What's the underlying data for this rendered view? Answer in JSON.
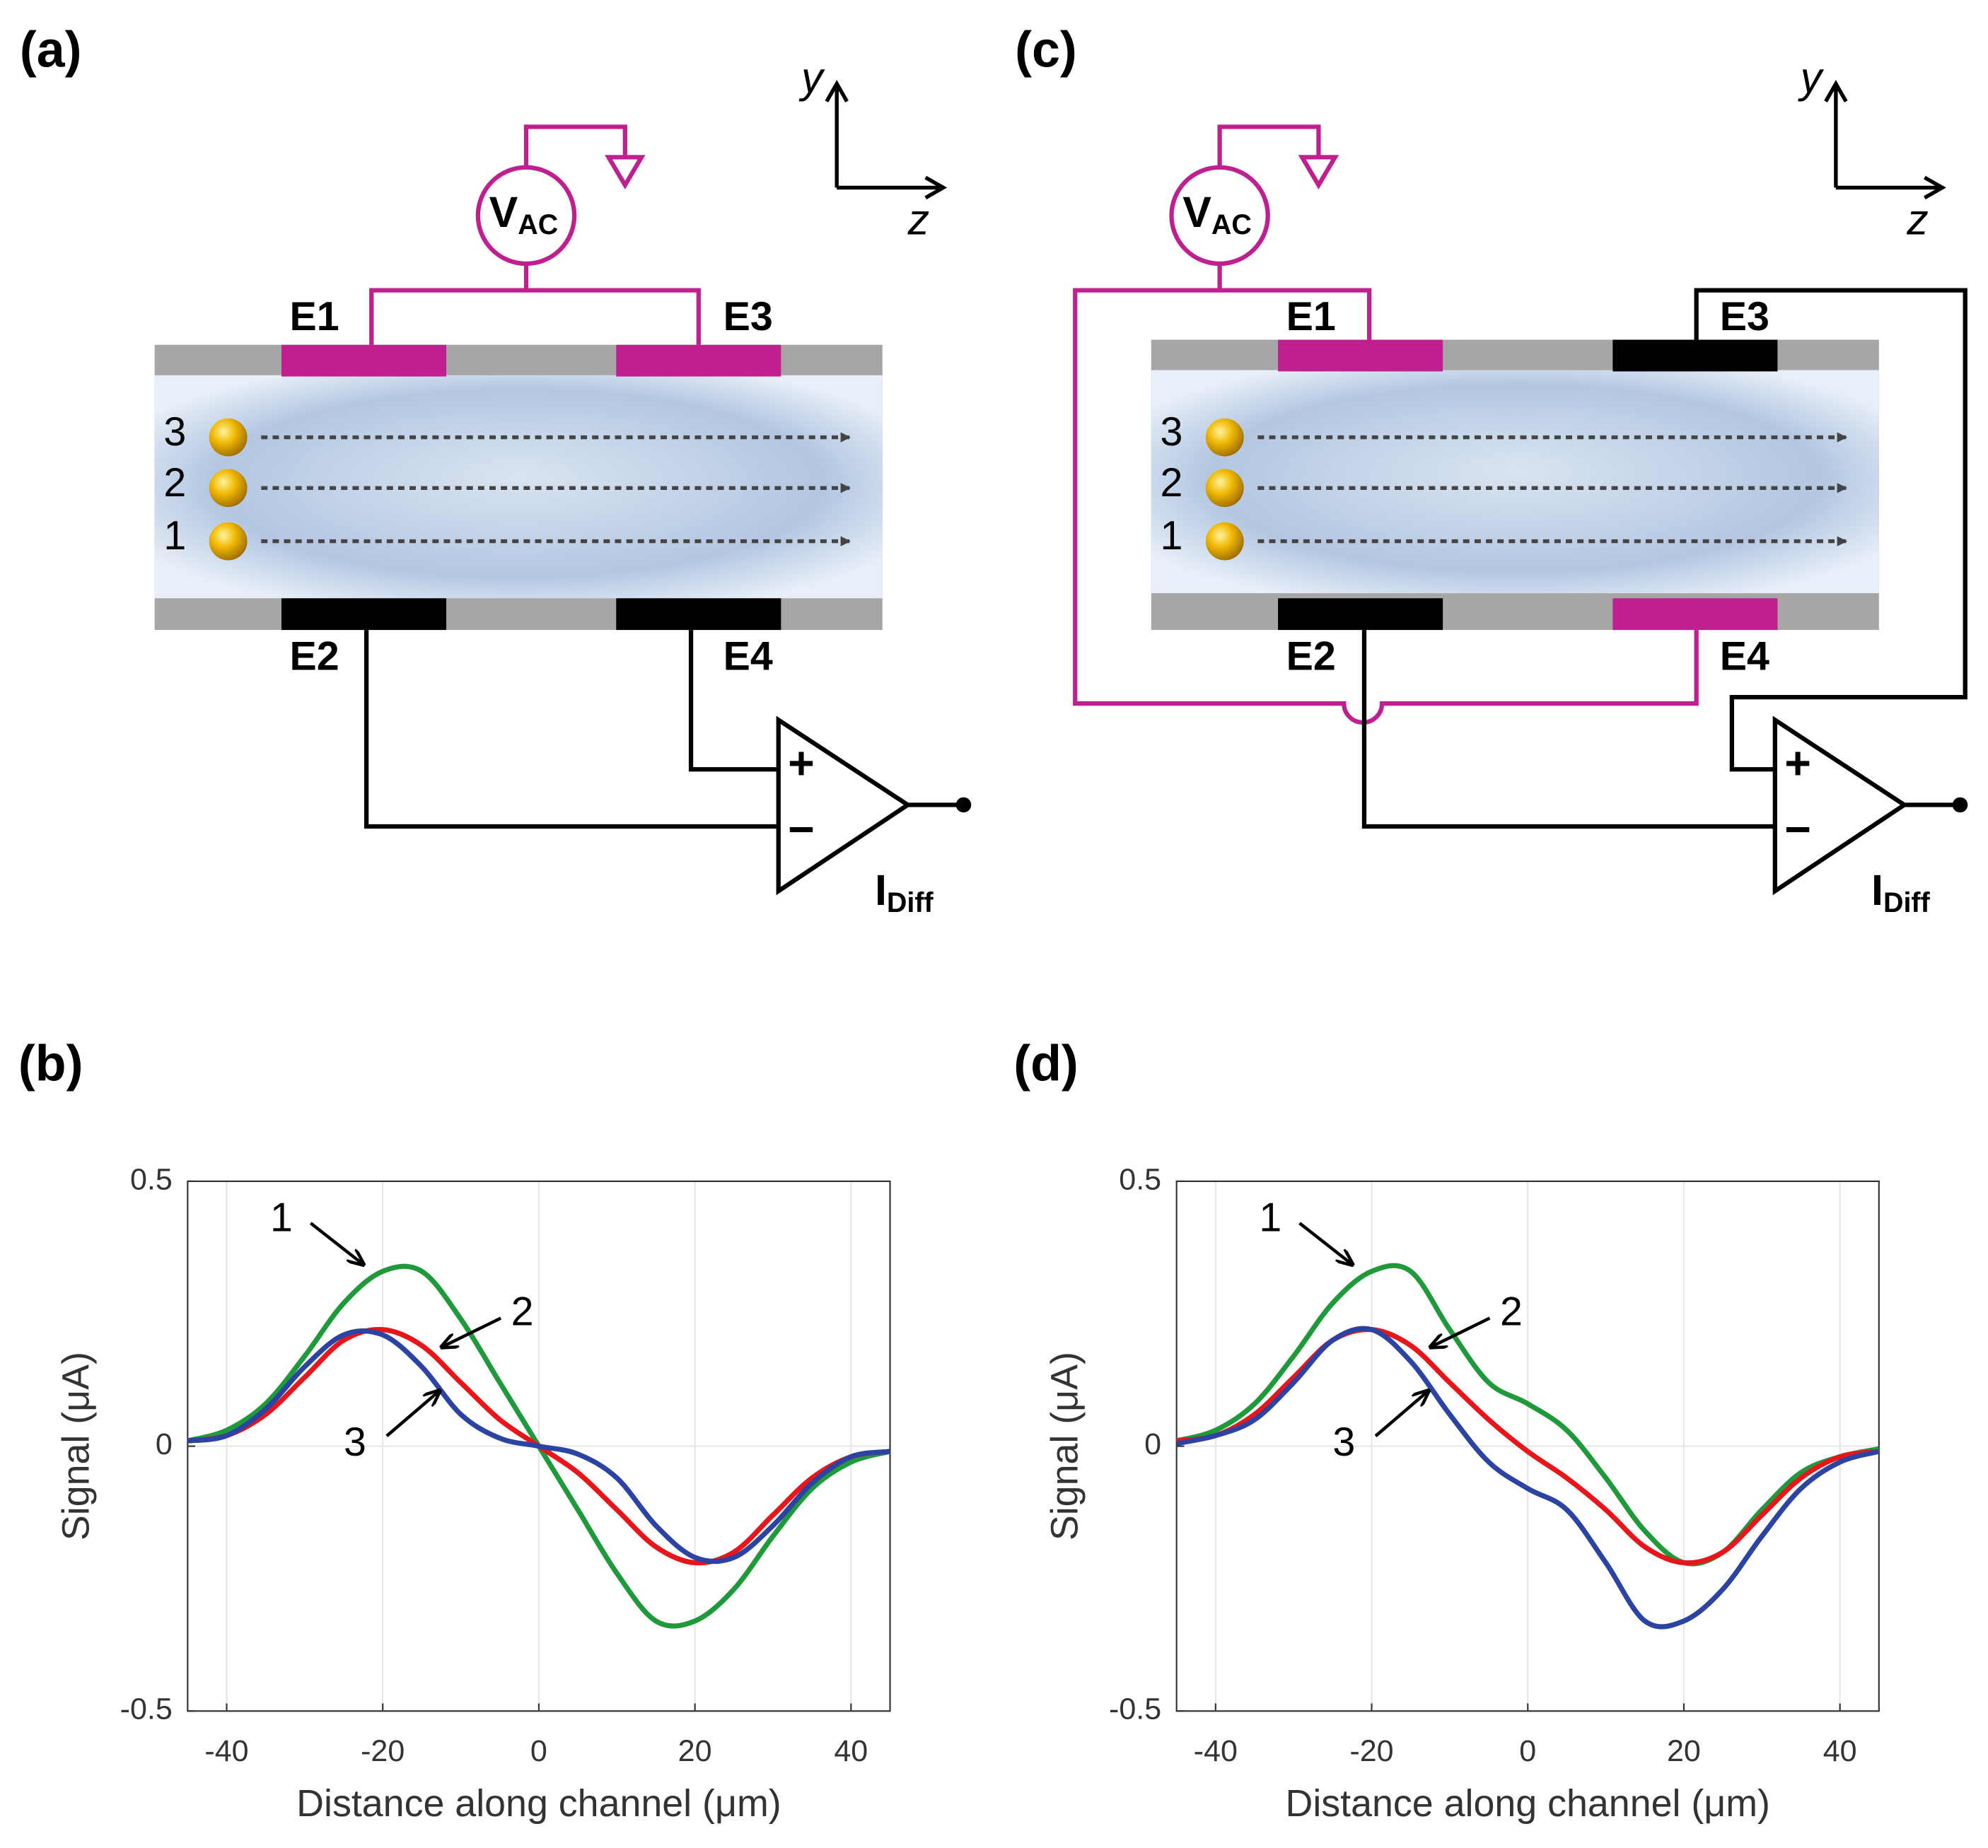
{
  "diagrams": [
    {
      "panel": "(a)",
      "axes": {
        "y": "y",
        "z": "z"
      },
      "source": {
        "main": "V",
        "sub": "AC"
      },
      "electrodes": [
        "E1",
        "E2",
        "E3",
        "E4"
      ],
      "particles": [
        "3",
        "2",
        "1"
      ],
      "amplifier": {
        "plus": "+",
        "minus": "−",
        "output_main": "I",
        "output_sub": "Diff"
      }
    },
    {
      "panel": "(c)",
      "axes": {
        "y": "y",
        "z": "z"
      },
      "source": {
        "main": "V",
        "sub": "AC"
      },
      "electrodes": [
        "E1",
        "E2",
        "E3",
        "E4"
      ],
      "particles": [
        "3",
        "2",
        "1"
      ],
      "amplifier": {
        "plus": "+",
        "minus": "−",
        "output_main": "I",
        "output_sub": "Diff"
      }
    }
  ],
  "chart_data": [
    {
      "type": "line",
      "panel": "(b)",
      "x_label": "Distance along channel (μm)",
      "y_label": "Signal (μA)",
      "x": [
        -45,
        -40,
        -35,
        -30,
        -25,
        -20,
        -15,
        -10,
        -5,
        0,
        5,
        10,
        15,
        20,
        25,
        30,
        35,
        40,
        45
      ],
      "series": [
        {
          "name": "1",
          "color": "#1e9a3a",
          "values": [
            0.01,
            0.03,
            0.08,
            0.17,
            0.27,
            0.33,
            0.33,
            0.24,
            0.12,
            0.0,
            -0.12,
            -0.24,
            -0.33,
            -0.33,
            -0.27,
            -0.17,
            -0.08,
            -0.03,
            -0.01
          ]
        },
        {
          "name": "2",
          "color": "#e8161b",
          "values": [
            0.01,
            0.02,
            0.06,
            0.13,
            0.2,
            0.22,
            0.19,
            0.12,
            0.05,
            0.0,
            -0.05,
            -0.12,
            -0.19,
            -0.22,
            -0.2,
            -0.13,
            -0.06,
            -0.02,
            -0.01
          ]
        },
        {
          "name": "3",
          "color": "#2b44a3",
          "values": [
            0.01,
            0.02,
            0.07,
            0.15,
            0.21,
            0.21,
            0.15,
            0.06,
            0.015,
            0.0,
            -0.015,
            -0.06,
            -0.15,
            -0.21,
            -0.21,
            -0.15,
            -0.07,
            -0.02,
            -0.01
          ]
        }
      ],
      "xlim": [
        -45,
        45
      ],
      "ylim": [
        -0.5,
        0.5
      ],
      "xticks": [
        -40,
        -20,
        0,
        20,
        40
      ],
      "yticks": [
        -0.5,
        0,
        0.5
      ],
      "grid": true
    },
    {
      "type": "line",
      "panel": "(d)",
      "x_label": "Distance along channel (μm)",
      "y_label": "Signal (μA)",
      "x": [
        -45,
        -40,
        -35,
        -30,
        -25,
        -20,
        -15,
        -10,
        -5,
        0,
        5,
        10,
        15,
        20,
        25,
        30,
        35,
        40,
        45
      ],
      "series": [
        {
          "name": "1",
          "color": "#1e9a3a",
          "values": [
            0.01,
            0.03,
            0.08,
            0.17,
            0.27,
            0.33,
            0.33,
            0.22,
            0.12,
            0.08,
            0.03,
            -0.06,
            -0.16,
            -0.22,
            -0.2,
            -0.12,
            -0.05,
            -0.02,
            -0.005
          ]
        },
        {
          "name": "2",
          "color": "#e8161b",
          "values": [
            0.01,
            0.02,
            0.06,
            0.13,
            0.2,
            0.22,
            0.19,
            0.12,
            0.05,
            -0.01,
            -0.06,
            -0.12,
            -0.19,
            -0.22,
            -0.2,
            -0.13,
            -0.06,
            -0.02,
            -0.01
          ]
        },
        {
          "name": "3",
          "color": "#2b44a3",
          "values": [
            0.005,
            0.02,
            0.05,
            0.12,
            0.2,
            0.22,
            0.16,
            0.06,
            -0.03,
            -0.08,
            -0.12,
            -0.22,
            -0.33,
            -0.33,
            -0.27,
            -0.17,
            -0.08,
            -0.03,
            -0.01
          ]
        }
      ],
      "xlim": [
        -45,
        45
      ],
      "ylim": [
        -0.5,
        0.5
      ],
      "xticks": [
        -40,
        -20,
        0,
        20,
        40
      ],
      "yticks": [
        -0.5,
        0,
        0.5
      ],
      "grid": true
    }
  ]
}
